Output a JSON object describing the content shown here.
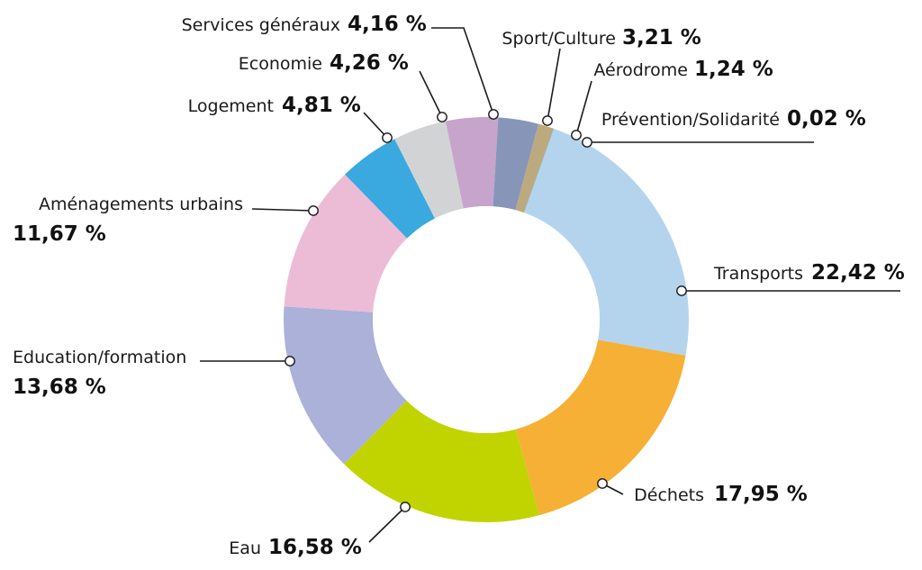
{
  "chart_data": {
    "type": "pie",
    "style": "donut",
    "segments": [
      {
        "name": "Transports",
        "value": 22.42,
        "label": "22,42 %",
        "color": "#b4d4ee"
      },
      {
        "name": "Déchets",
        "value": 17.95,
        "label": "17,95 %",
        "color": "#f5b035"
      },
      {
        "name": "Eau",
        "value": 16.58,
        "label": "16,58 %",
        "color": "#c1d400"
      },
      {
        "name": "Education/formation",
        "value": 13.68,
        "label": "13,68 %",
        "color": "#abb1d8"
      },
      {
        "name": "Aménagements urbains",
        "value": 11.67,
        "label": "11,67 %",
        "color": "#ecbcd7"
      },
      {
        "name": "Logement",
        "value": 4.81,
        "label": "4,81 %",
        "color": "#39a9df"
      },
      {
        "name": "Economie",
        "value": 4.26,
        "label": "4,26 %",
        "color": "#d2d3d5"
      },
      {
        "name": "Services généraux",
        "value": 4.16,
        "label": "4,16 %",
        "color": "#c7a4cc"
      },
      {
        "name": "Sport/Culture",
        "value": 3.21,
        "label": "3,21 %",
        "color": "#8796b8"
      },
      {
        "name": "Aérodrome",
        "value": 1.24,
        "label": "1,24 %",
        "color": "#bca97d"
      },
      {
        "name": "Prévention/Solidarité",
        "value": 0.02,
        "label": "0,02 %",
        "color": "#47a6d8"
      }
    ]
  }
}
